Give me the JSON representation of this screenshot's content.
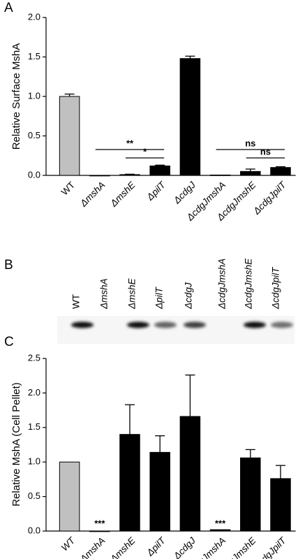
{
  "chart_data": [
    {
      "type": "bar",
      "panel_label": "A",
      "y_label": "Relative Surface MshA",
      "categories": [
        "WT",
        "ΔmshA",
        "ΔmshE",
        "ΔpilT",
        "ΔcdgJ",
        "ΔcdgJmshA",
        "ΔcdgJmshE",
        "ΔcdgJpilT"
      ],
      "colors": [
        "#c0c0c0",
        "#000000",
        "#000000",
        "#000000",
        "#000000",
        "#000000",
        "#000000",
        "#000000"
      ],
      "values": [
        1.0,
        0.0,
        0.01,
        0.12,
        1.48,
        0.005,
        0.05,
        0.1
      ],
      "errors": [
        0.03,
        null,
        0.005,
        0.01,
        0.03,
        null,
        0.03,
        0.01
      ],
      "ylim": [
        0,
        2.0
      ],
      "yticks": [
        {
          "value": 0,
          "label": "0.0"
        },
        {
          "value": 0.5,
          "label": "0.5"
        },
        {
          "value": 1.0,
          "label": "1.0"
        },
        {
          "value": 1.5,
          "label": "1.5"
        },
        {
          "value": 2.0,
          "label": "2.0"
        }
      ],
      "annotations": [
        "**",
        "*",
        "ns",
        "ns"
      ]
    },
    {
      "type": "bar",
      "panel_label": "C",
      "y_label": "Relative MshA (Cell Pellet)",
      "categories": [
        "WT",
        "ΔmshA",
        "ΔmshE",
        "ΔpilT",
        "ΔcdgJ",
        "ΔcdgJmshA",
        "ΔcdgJmshE",
        "ΔcdgJpilT"
      ],
      "colors": [
        "#c0c0c0",
        "#000000",
        "#000000",
        "#000000",
        "#000000",
        "#000000",
        "#000000",
        "#000000"
      ],
      "values": [
        1.0,
        0.0,
        1.4,
        1.14,
        1.66,
        0.02,
        1.06,
        0.76
      ],
      "errors": [
        null,
        null,
        0.43,
        0.24,
        0.6,
        null,
        0.12,
        0.19
      ],
      "ylim": [
        0,
        2.5
      ],
      "yticks": [
        {
          "value": 0,
          "label": "0.0"
        },
        {
          "value": 0.5,
          "label": "0.5"
        },
        {
          "value": 1.0,
          "label": "1.0"
        },
        {
          "value": 1.5,
          "label": "1.5"
        },
        {
          "value": 2.0,
          "label": "2.0"
        },
        {
          "value": 2.5,
          "label": "2.5"
        }
      ],
      "annotations": [
        "***",
        "***"
      ]
    }
  ],
  "blot": {
    "panel_label": "B",
    "lanes": [
      "WT",
      "ΔmshA",
      "ΔmshE",
      "ΔpilT",
      "ΔcdgJ",
      "ΔcdgJmshA",
      "ΔcdgJmshE",
      "ΔcdgJpilT"
    ]
  }
}
